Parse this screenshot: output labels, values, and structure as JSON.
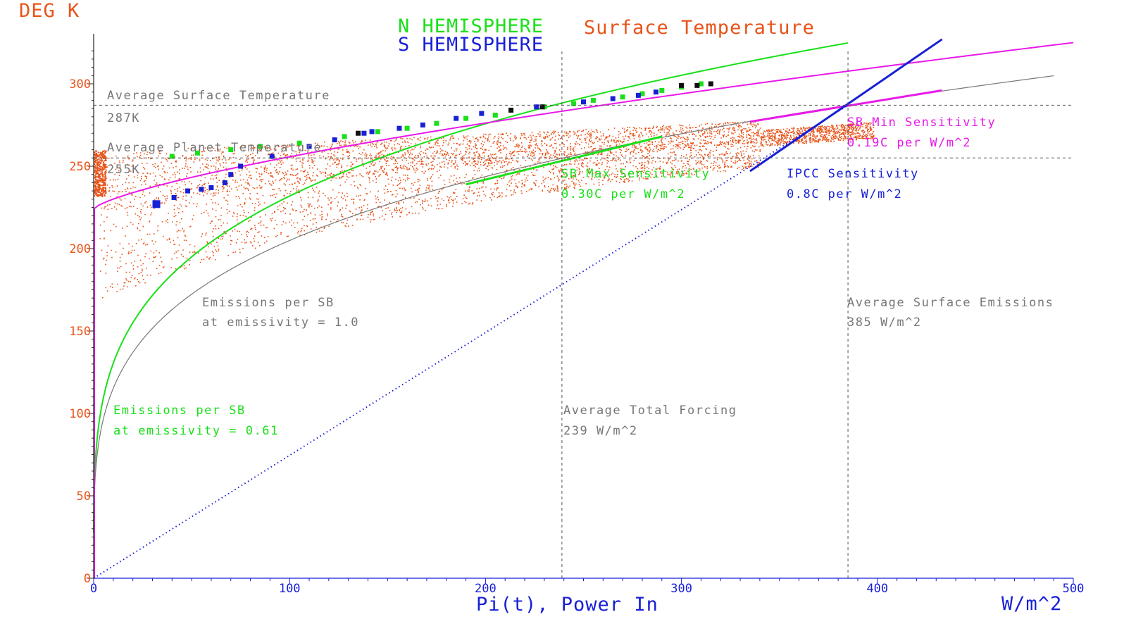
{
  "chart_data": {
    "type": "scatter",
    "y_unit_label": "DEG K",
    "x_unit_label": "W/m^2",
    "xlabel": "Pi(t), Power In",
    "title_parts": [
      "N HEMISPHERE",
      "Surface Temperature"
    ],
    "subtitle": "S HEMISPHERE",
    "xlim": [
      0,
      500
    ],
    "ylim": [
      0,
      325
    ],
    "x_ticks": [
      0,
      100,
      200,
      300,
      400,
      500
    ],
    "y_ticks": [
      0,
      50,
      100,
      150,
      200,
      250,
      300
    ],
    "colors": {
      "temperature": "#e8541a",
      "north": "#19e019",
      "south": "#1820d6",
      "magenta": "#e81ae8",
      "gray": "#777777",
      "black": "#111111"
    },
    "reference_lines": {
      "horizontal": [
        287,
        255
      ],
      "vertical": [
        239,
        385
      ]
    },
    "series": [
      {
        "name": "N HEMISPHERE",
        "marker": "square",
        "points": [
          [
            40,
            256
          ],
          [
            53,
            258
          ],
          [
            70,
            260
          ],
          [
            85,
            262
          ],
          [
            105,
            264
          ],
          [
            128,
            268
          ],
          [
            145,
            271
          ],
          [
            160,
            273
          ],
          [
            175,
            276
          ],
          [
            190,
            279
          ],
          [
            205,
            281
          ],
          [
            230,
            286
          ],
          [
            245,
            288
          ],
          [
            255,
            290
          ],
          [
            270,
            292
          ],
          [
            280,
            294
          ],
          [
            290,
            296
          ],
          [
            300,
            298
          ],
          [
            310,
            300
          ]
        ]
      },
      {
        "name": "S HEMISPHERE",
        "marker": "square",
        "points": [
          [
            32,
            227
          ],
          [
            41,
            231
          ],
          [
            48,
            235
          ],
          [
            55,
            236
          ],
          [
            60,
            237
          ],
          [
            67,
            240
          ],
          [
            70,
            245
          ],
          [
            75,
            250
          ],
          [
            91,
            256
          ],
          [
            110,
            262
          ],
          [
            123,
            266
          ],
          [
            138,
            270
          ],
          [
            142,
            271
          ],
          [
            156,
            273
          ],
          [
            168,
            275
          ],
          [
            185,
            279
          ],
          [
            198,
            282
          ],
          [
            226,
            286
          ],
          [
            250,
            289
          ],
          [
            265,
            291
          ],
          [
            278,
            293
          ],
          [
            287,
            295
          ]
        ]
      },
      {
        "name": "black",
        "marker": "square",
        "points": [
          [
            135,
            270
          ],
          [
            213,
            284
          ],
          [
            229,
            286
          ],
          [
            300,
            299
          ],
          [
            308,
            299
          ],
          [
            315,
            300
          ]
        ]
      }
    ],
    "curves": {
      "sb_emissivity_1": {
        "emissivity": 1.0,
        "x_from": 0,
        "x_to": 490
      },
      "sb_emissivity_061": {
        "emissivity": 0.61,
        "x_from": 0,
        "x_to": 385
      },
      "magenta_power": {
        "y_at_0": 224,
        "y_at_500": 325
      },
      "magenta_tangent": [
        [
          335,
          277
        ],
        [
          433,
          296
        ]
      ],
      "green_tangent": [
        [
          190,
          239
        ],
        [
          290,
          268
        ]
      ],
      "ipcc_line": [
        [
          335,
          247
        ],
        [
          433,
          327
        ]
      ],
      "blue_dotted": [
        [
          0,
          0
        ],
        [
          385,
          287
        ]
      ]
    },
    "annotations": {
      "avg_surface_temp": "Average Surface Temperature",
      "avg_surface_temp_value": "287K",
      "avg_planet_temp": "Average Planet Temperature",
      "avg_planet_temp_value": "255K",
      "sb_min": "SB Min Sensitivity",
      "sb_min_value": "0.19C per W/m^2",
      "sb_max": "SB Max Sensitivity",
      "sb_max_value": "0.30C per W/m^2",
      "ipcc": "IPCC Sensitivity",
      "ipcc_value": "0.8C per W/m^2",
      "emissions_sb_1": "Emissions per SB",
      "emissions_sb_1_value": "at emissivity = 1.0",
      "avg_surface_emissions": "Average Surface Emissions",
      "avg_surface_emissions_value": "385 W/m^2",
      "emissions_sb_061": "Emissions per SB",
      "emissions_sb_061_value": "at emissivity = 0.61",
      "avg_total_forcing": "Average Total Forcing",
      "avg_total_forcing_value": "239 W/m^2"
    }
  }
}
